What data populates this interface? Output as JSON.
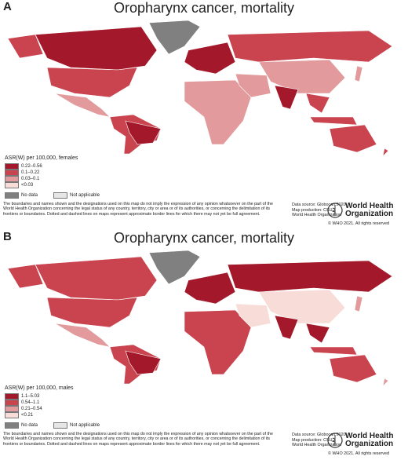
{
  "panels": [
    {
      "label": "A",
      "title": "Oropharynx cancer, mortality",
      "legend": {
        "title": "ASR(W) per 100,000, females",
        "items": [
          "0.22–0.56",
          "0.1–0.22",
          "0.03–0.1",
          "<0.03"
        ],
        "colors": [
          "#a3182a",
          "#c9444f",
          "#e29a9c",
          "#f8dcd8"
        ],
        "no_data": "No data",
        "not_applicable": "Not applicable",
        "no_data_color": "#808080",
        "not_applicable_color": "#e6e6e6"
      },
      "disclaimer": "The boundaries and names shown and the designations used on this map do not imply the expression of any opinion whatsoever on the part of the World Health Organization concerning the legal status of any country, territory, city or area or of its authorities, or concerning the delimitation of its frontiers or boundaries. Dotted and dashed lines on maps represent approximate border lines for which there may not yet be full agreement.",
      "source": [
        "Data source: Globocan 2020",
        "Map production: CSU",
        "World Health Organization"
      ],
      "logo": [
        "World Health",
        "Organization"
      ],
      "copyright": "© WHO 2021. All rights reserved"
    },
    {
      "label": "B",
      "title": "Oropharynx cancer, mortality",
      "legend": {
        "title": "ASR(W) per 100,000, males",
        "items": [
          "1.1–5.03",
          "0.54–1.1",
          "0.21–0.54",
          "<0.21"
        ],
        "colors": [
          "#a3182a",
          "#c9444f",
          "#e29a9c",
          "#f8dcd8"
        ],
        "no_data": "No data",
        "not_applicable": "Not applicable",
        "no_data_color": "#808080",
        "not_applicable_color": "#e6e6e6"
      },
      "disclaimer": "The boundaries and names shown and the designations used on this map do not imply the expression of any opinion whatsoever on the part of the World Health Organization concerning the legal status of any country, territory, city or area or of its authorities, or concerning the delimitation of its frontiers or boundaries. Dotted and dashed lines on maps represent approximate border lines for which there may not yet be full agreement.",
      "source": [
        "Data source: Globocan 2020",
        "Map production: CSU",
        "World Health Organization"
      ],
      "logo": [
        "World Health",
        "Organization"
      ],
      "copyright": "© WHO 2021. All rights reserved"
    }
  ]
}
